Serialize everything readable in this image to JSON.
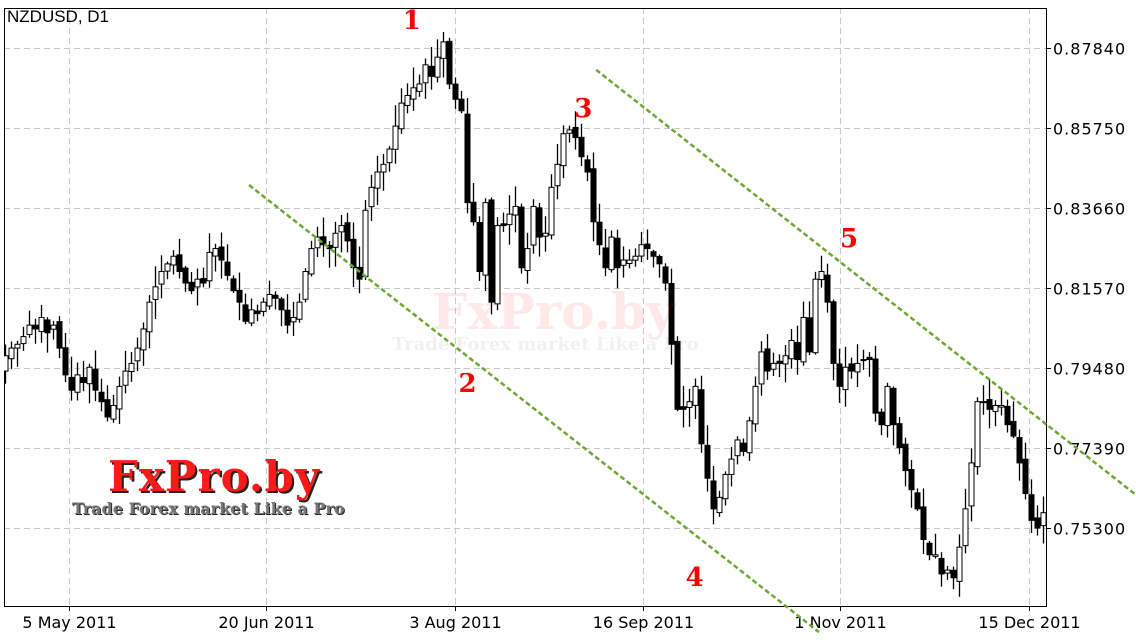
{
  "chart_data": {
    "type": "candlestick",
    "title": "NZDUSD, D1",
    "grid": true,
    "colors": {
      "bull_body": "#ffffff",
      "bear_body": "#000000",
      "trendline": "#6aa832",
      "annotation": "#ff0000",
      "grid": "#c8c8c8"
    },
    "y_ticks": [
      "0.87840",
      "0.85750",
      "0.83660",
      "0.81570",
      "0.79480",
      "0.77390",
      "0.75300"
    ],
    "ylim": [
      0.7195,
      0.8936
    ],
    "x_ticks": [
      {
        "label": "5 May 2011",
        "date": "2011-05-05"
      },
      {
        "label": "20 Jun 2011",
        "date": "2011-06-20"
      },
      {
        "label": "3 Aug 2011",
        "date": "2011-08-03"
      },
      {
        "label": "16 Sep 2011",
        "date": "2011-09-16"
      },
      {
        "label": "1 Nov 2011",
        "date": "2011-11-01"
      },
      {
        "label": "15 Dec 2011",
        "date": "2011-12-15"
      }
    ],
    "closes": [
      0.798,
      0.8,
      0.801,
      0.803,
      0.806,
      0.805,
      0.808,
      0.804,
      0.806,
      0.8,
      0.793,
      0.789,
      0.793,
      0.791,
      0.795,
      0.789,
      0.786,
      0.782,
      0.785,
      0.79,
      0.794,
      0.796,
      0.8,
      0.805,
      0.812,
      0.816,
      0.82,
      0.822,
      0.824,
      0.82,
      0.817,
      0.815,
      0.818,
      0.817,
      0.825,
      0.826,
      0.823,
      0.819,
      0.815,
      0.812,
      0.807,
      0.81,
      0.809,
      0.812,
      0.814,
      0.813,
      0.81,
      0.806,
      0.808,
      0.812,
      0.82,
      0.826,
      0.829,
      0.827,
      0.826,
      0.83,
      0.832,
      0.828,
      0.821,
      0.818,
      0.836,
      0.842,
      0.846,
      0.848,
      0.852,
      0.858,
      0.864,
      0.866,
      0.868,
      0.869,
      0.874,
      0.871,
      0.876,
      0.88,
      0.869,
      0.865,
      0.862,
      0.838,
      0.833,
      0.82,
      0.838,
      0.812,
      0.832,
      0.832,
      0.835,
      0.837,
      0.821,
      0.826,
      0.837,
      0.829,
      0.83,
      0.842,
      0.848,
      0.856,
      0.857,
      0.855,
      0.85,
      0.846,
      0.833,
      0.827,
      0.821,
      0.829,
      0.821,
      0.823,
      0.823,
      0.824,
      0.827,
      0.826,
      0.824,
      0.822,
      0.817,
      0.801,
      0.784,
      0.784,
      0.786,
      0.79,
      0.775,
      0.766,
      0.758,
      0.761,
      0.767,
      0.771,
      0.776,
      0.773,
      0.781,
      0.79,
      0.799,
      0.794,
      0.796,
      0.796,
      0.798,
      0.802,
      0.797,
      0.808,
      0.799,
      0.818,
      0.82,
      0.812,
      0.796,
      0.79,
      0.795,
      0.794,
      0.796,
      0.797,
      0.797,
      0.783,
      0.78,
      0.79,
      0.78,
      0.774,
      0.768,
      0.763,
      0.758,
      0.75,
      0.746,
      0.746,
      0.741,
      0.742,
      0.74,
      0.748,
      0.758,
      0.77,
      0.786,
      0.786,
      0.784,
      0.785,
      0.785,
      0.78,
      0.777,
      0.77,
      0.762,
      0.755,
      0.753,
      0.757
    ],
    "trendlines": [
      {
        "from": {
          "date": "2011-06-16",
          "price": 0.8426
        },
        "to": {
          "date": "2011-10-27",
          "price": 0.7258
        }
      },
      {
        "from": {
          "date": "2011-09-05",
          "price": 0.8727
        },
        "to": {
          "date": "2012-01-09",
          "price": 0.7616
        }
      }
    ],
    "annotations": [
      {
        "text": "1",
        "date": "2011-07-24",
        "price": 0.8857
      },
      {
        "text": "2",
        "date": "2011-08-06",
        "price": 0.7909
      },
      {
        "text": "3",
        "date": "2011-09-02",
        "price": 0.8627
      },
      {
        "text": "4",
        "date": "2011-09-28",
        "price": 0.7402
      },
      {
        "text": "5",
        "date": "2011-11-03",
        "price": 0.8288
      }
    ]
  },
  "watermark": {
    "brand": "FxPro.by",
    "slogan": "Trade Forex market Like a Pro"
  }
}
